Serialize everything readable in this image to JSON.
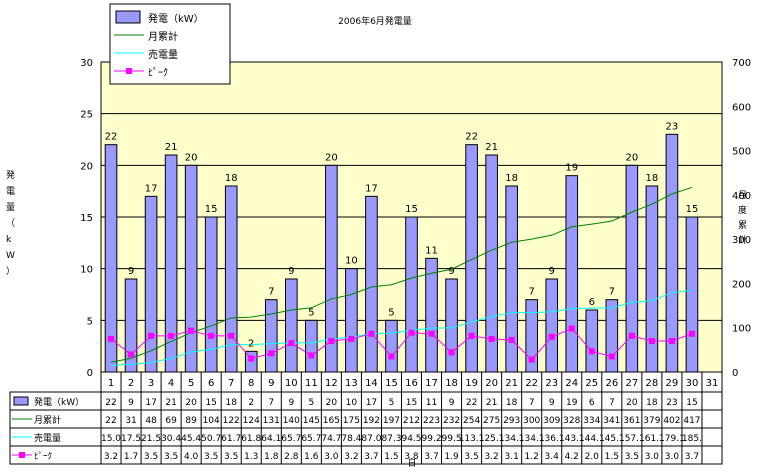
{
  "chart_data": {
    "type": "bar",
    "title": "2006年6月発電量",
    "ylabel_left": "発電量（kW）",
    "ylabel_right": "月度累計",
    "xlabel": "日",
    "ylim_left": [
      0,
      30
    ],
    "ylim_right": [
      0,
      700
    ],
    "yticks_left": [
      "0",
      "5",
      "10",
      "15",
      "20",
      "25",
      "30"
    ],
    "yticks_right": [
      "0",
      "100",
      "200",
      "300",
      "400",
      "500",
      "600",
      "700"
    ],
    "grid": true,
    "legend_position": "top-left",
    "colors": {
      "plot_bg": "#ffffcc",
      "bar": "#9999ff",
      "cumulative": "#008000",
      "sold": "#00ffff",
      "peak": "#ff00ff"
    },
    "categories": [
      "1",
      "2",
      "3",
      "4",
      "5",
      "6",
      "7",
      "8",
      "9",
      "10",
      "11",
      "12",
      "13",
      "14",
      "15",
      "16",
      "17",
      "18",
      "19",
      "20",
      "21",
      "22",
      "23",
      "24",
      "25",
      "26",
      "27",
      "28",
      "29",
      "30",
      "31"
    ],
    "series": [
      {
        "name": "発電（kW）",
        "kind": "bar",
        "axis": "left",
        "values": [
          22,
          9,
          17,
          21,
          20,
          15,
          18,
          2,
          7,
          9,
          5,
          20,
          10,
          17,
          5,
          15,
          11,
          9,
          22,
          21,
          18,
          7,
          9,
          19,
          6,
          7,
          20,
          18,
          23,
          15,
          null
        ],
        "data_labels": [
          "22",
          "9",
          "17",
          "21",
          "20",
          "15",
          "18",
          "2",
          "7",
          "9",
          "5",
          "20",
          "10",
          "17",
          "5",
          "15",
          "11",
          "9",
          "22",
          "21",
          "18",
          "7",
          "9",
          "19",
          "6",
          "7",
          "20",
          "18",
          "23",
          "15",
          ""
        ]
      },
      {
        "name": "月累計",
        "kind": "line",
        "axis": "right",
        "values": [
          22,
          31,
          48,
          69,
          89,
          104,
          122,
          124,
          131,
          140,
          145,
          165,
          175,
          192,
          197,
          212,
          223,
          232,
          254,
          275,
          293,
          300,
          309,
          328,
          334,
          341,
          361,
          379,
          402,
          417,
          null
        ]
      },
      {
        "name": "売電量",
        "kind": "line",
        "axis": "right",
        "values": [
          15.0,
          17.5,
          21.5,
          30.4,
          45.4,
          50.7,
          61.7,
          61.8,
          64.1,
          65.7,
          65.7,
          74.7,
          78.4,
          87.0,
          87.3,
          94.5,
          99.2,
          99.5,
          113.1,
          125.1,
          134.1,
          134.1,
          136.1,
          143.1,
          144.1,
          145.1,
          157.1,
          161.1,
          179.1,
          185.0,
          null
        ],
        "table_labels": [
          "15.0",
          "17.5",
          "21.5",
          "30.4",
          "45.4",
          "50.7",
          "61.7",
          "61.8",
          "64.1",
          "65.7",
          "65.7",
          "74.7",
          "78.4",
          "87.0",
          "87.3",
          "94.5",
          "99.2",
          "99.5",
          "113.1",
          "125.1",
          "134.1",
          "134.1",
          "136.1",
          "143.1",
          "144.1",
          "145.1",
          "157.1",
          "161.1",
          "179.1",
          "185.",
          ""
        ]
      },
      {
        "name": "ﾋﾟｰｸ",
        "kind": "line-marker",
        "axis": "left",
        "values": [
          3.2,
          1.7,
          3.5,
          3.5,
          4.0,
          3.5,
          3.5,
          1.3,
          1.8,
          2.8,
          1.6,
          3.0,
          3.2,
          3.7,
          1.5,
          3.8,
          3.7,
          1.9,
          3.5,
          3.2,
          3.1,
          1.2,
          3.4,
          4.2,
          2.0,
          1.5,
          3.5,
          3.0,
          3.0,
          3.7,
          null
        ]
      }
    ],
    "table": {
      "rows": [
        {
          "label": "発電（kW）",
          "cells": [
            "22",
            "9",
            "17",
            "21",
            "20",
            "15",
            "18",
            "2",
            "7",
            "9",
            "5",
            "20",
            "10",
            "17",
            "5",
            "15",
            "11",
            "9",
            "22",
            "21",
            "18",
            "7",
            "9",
            "19",
            "6",
            "7",
            "20",
            "18",
            "23",
            "15",
            ""
          ]
        },
        {
          "label": "月累計",
          "cells": [
            "22",
            "31",
            "48",
            "69",
            "89",
            "104",
            "122",
            "124",
            "131",
            "140",
            "145",
            "165",
            "175",
            "192",
            "197",
            "212",
            "223",
            "232",
            "254",
            "275",
            "293",
            "300",
            "309",
            "328",
            "334",
            "341",
            "361",
            "379",
            "402",
            "417",
            ""
          ]
        },
        {
          "label": "売電量",
          "cells": [
            "15.0",
            "17.5",
            "21.5",
            "30.4",
            "45.4",
            "50.7",
            "61.7",
            "61.8",
            "64.1",
            "65.7",
            "65.7",
            "74.7",
            "78.4",
            "87.0",
            "87.3",
            "94.5",
            "99.2",
            "99.5",
            "113.1",
            "125.1",
            "134.1",
            "134.1",
            "136.1",
            "143.1",
            "144.1",
            "145.1",
            "157.1",
            "161.1",
            "179.1",
            "185.",
            ""
          ]
        },
        {
          "label": "ﾋﾟｰｸ",
          "cells": [
            "3.2",
            "1.7",
            "3.5",
            "3.5",
            "4.0",
            "3.5",
            "3.5",
            "1.3",
            "1.8",
            "2.8",
            "1.6",
            "3.0",
            "3.2",
            "3.7",
            "1.5",
            "3.8",
            "3.7",
            "1.9",
            "3.5",
            "3.2",
            "3.1",
            "1.2",
            "3.4",
            "4.2",
            "2.0",
            "1.5",
            "3.5",
            "3.0",
            "3.0",
            "3.7",
            ""
          ]
        }
      ]
    }
  }
}
